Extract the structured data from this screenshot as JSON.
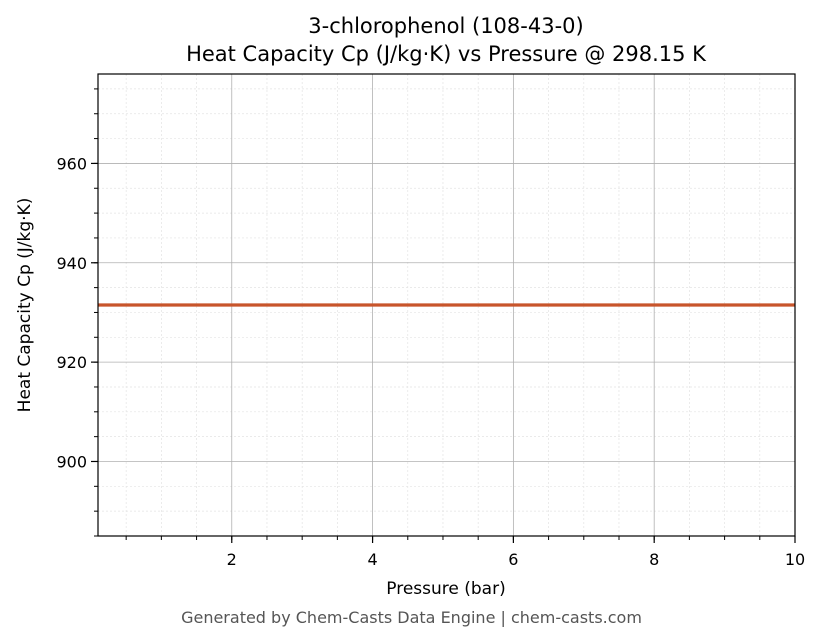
{
  "chart_data": {
    "type": "line",
    "title": "3-chlorophenol (108-43-0)",
    "subtitle": "Heat Capacity Cp (J/kg·K) vs Pressure @ 298.15 K",
    "xlabel": "Pressure (bar)",
    "ylabel": "Heat Capacity Cp (J/kg·K)",
    "xlim": [
      0.1,
      10
    ],
    "ylim": [
      885,
      978
    ],
    "x_ticks": [
      2,
      4,
      6,
      8,
      10
    ],
    "y_ticks": [
      900,
      920,
      940,
      960
    ],
    "grid": true,
    "series": [
      {
        "x": [
          0.1,
          10
        ],
        "y": [
          931.5,
          931.5
        ],
        "color": "#c8552b"
      }
    ]
  },
  "footer": "Generated by Chem-Casts Data Engine | chem-casts.com"
}
